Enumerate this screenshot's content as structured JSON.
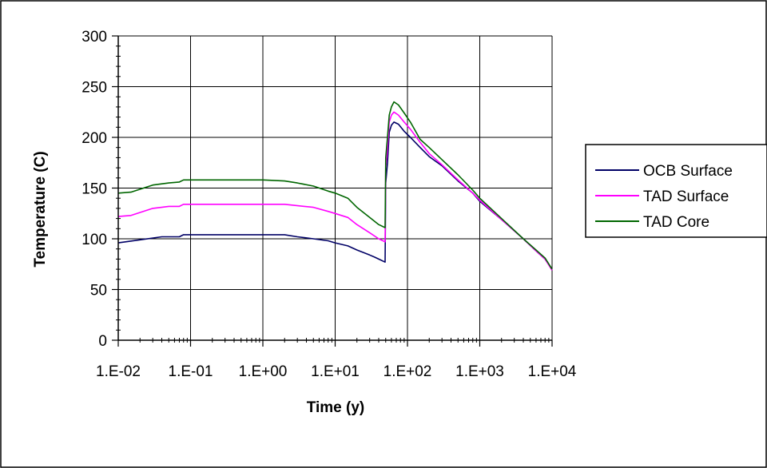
{
  "chart_data": {
    "type": "line",
    "xlabel": "Time (y)",
    "ylabel": "Temperature (C)",
    "x_scale": "log",
    "xlim": [
      0.01,
      10000
    ],
    "ylim": [
      0,
      300
    ],
    "x_ticks": [
      0.01,
      0.1,
      1,
      10,
      100,
      1000,
      10000
    ],
    "x_tick_labels": [
      "1.E-02",
      "1.E-01",
      "1.E+00",
      "1.E+01",
      "1.E+02",
      "1.E+03",
      "1.E+04"
    ],
    "y_ticks": [
      0,
      50,
      100,
      150,
      200,
      250,
      300
    ],
    "y_tick_labels": [
      "0",
      "50",
      "100",
      "150",
      "200",
      "250",
      "300"
    ],
    "grid": true,
    "legend_position": "right",
    "series": [
      {
        "name": "OCB Surface",
        "color": "#000066",
        "points": [
          [
            0.01,
            96
          ],
          [
            0.02,
            99
          ],
          [
            0.04,
            102
          ],
          [
            0.07,
            102
          ],
          [
            0.08,
            104
          ],
          [
            0.2,
            104
          ],
          [
            0.5,
            104
          ],
          [
            1,
            104
          ],
          [
            2,
            104
          ],
          [
            3,
            102
          ],
          [
            5,
            100
          ],
          [
            8,
            98
          ],
          [
            10,
            96
          ],
          [
            15,
            93
          ],
          [
            20,
            89
          ],
          [
            30,
            84
          ],
          [
            35,
            82
          ],
          [
            40,
            80
          ],
          [
            49,
            77
          ],
          [
            50,
            155
          ],
          [
            53,
            175
          ],
          [
            56,
            205
          ],
          [
            60,
            212
          ],
          [
            65,
            215
          ],
          [
            75,
            213
          ],
          [
            90,
            206
          ],
          [
            110,
            200
          ],
          [
            150,
            190
          ],
          [
            200,
            181
          ],
          [
            300,
            172
          ],
          [
            500,
            157
          ],
          [
            800,
            145
          ],
          [
            1000,
            137
          ],
          [
            2000,
            119
          ],
          [
            4000,
            100
          ],
          [
            6000,
            88
          ],
          [
            8000,
            80
          ],
          [
            10000,
            70
          ]
        ]
      },
      {
        "name": "TAD Surface",
        "color": "#ff00ff",
        "points": [
          [
            0.01,
            122
          ],
          [
            0.015,
            123
          ],
          [
            0.03,
            130
          ],
          [
            0.05,
            132
          ],
          [
            0.07,
            132
          ],
          [
            0.08,
            134
          ],
          [
            0.2,
            134
          ],
          [
            0.5,
            134
          ],
          [
            1,
            134
          ],
          [
            2,
            134
          ],
          [
            5,
            131
          ],
          [
            8,
            127
          ],
          [
            10,
            125
          ],
          [
            15,
            121
          ],
          [
            20,
            114
          ],
          [
            30,
            106
          ],
          [
            40,
            100
          ],
          [
            49,
            97
          ],
          [
            50,
            170
          ],
          [
            53,
            190
          ],
          [
            56,
            215
          ],
          [
            60,
            222
          ],
          [
            65,
            225
          ],
          [
            75,
            222
          ],
          [
            90,
            215
          ],
          [
            110,
            208
          ],
          [
            150,
            195
          ],
          [
            200,
            184
          ],
          [
            300,
            173
          ],
          [
            500,
            158
          ],
          [
            800,
            145
          ],
          [
            1000,
            138
          ],
          [
            2000,
            119
          ],
          [
            4000,
            100
          ],
          [
            6000,
            88
          ],
          [
            8000,
            80
          ],
          [
            10000,
            69
          ]
        ]
      },
      {
        "name": "TAD Core",
        "color": "#006600",
        "points": [
          [
            0.01,
            145
          ],
          [
            0.015,
            146
          ],
          [
            0.03,
            153
          ],
          [
            0.05,
            155
          ],
          [
            0.07,
            156
          ],
          [
            0.08,
            158
          ],
          [
            0.2,
            158
          ],
          [
            0.5,
            158
          ],
          [
            1,
            158
          ],
          [
            2,
            157
          ],
          [
            3,
            155
          ],
          [
            5,
            152
          ],
          [
            8,
            147
          ],
          [
            10,
            145
          ],
          [
            15,
            140
          ],
          [
            20,
            131
          ],
          [
            30,
            121
          ],
          [
            40,
            114
          ],
          [
            49,
            111
          ],
          [
            50,
            180
          ],
          [
            53,
            200
          ],
          [
            56,
            222
          ],
          [
            60,
            230
          ],
          [
            65,
            235
          ],
          [
            75,
            232
          ],
          [
            90,
            224
          ],
          [
            110,
            215
          ],
          [
            150,
            198
          ],
          [
            200,
            190
          ],
          [
            300,
            178
          ],
          [
            500,
            163
          ],
          [
            800,
            148
          ],
          [
            1000,
            140
          ],
          [
            2000,
            120
          ],
          [
            4000,
            100
          ],
          [
            6000,
            89
          ],
          [
            8000,
            81
          ],
          [
            10000,
            70
          ]
        ]
      }
    ]
  }
}
